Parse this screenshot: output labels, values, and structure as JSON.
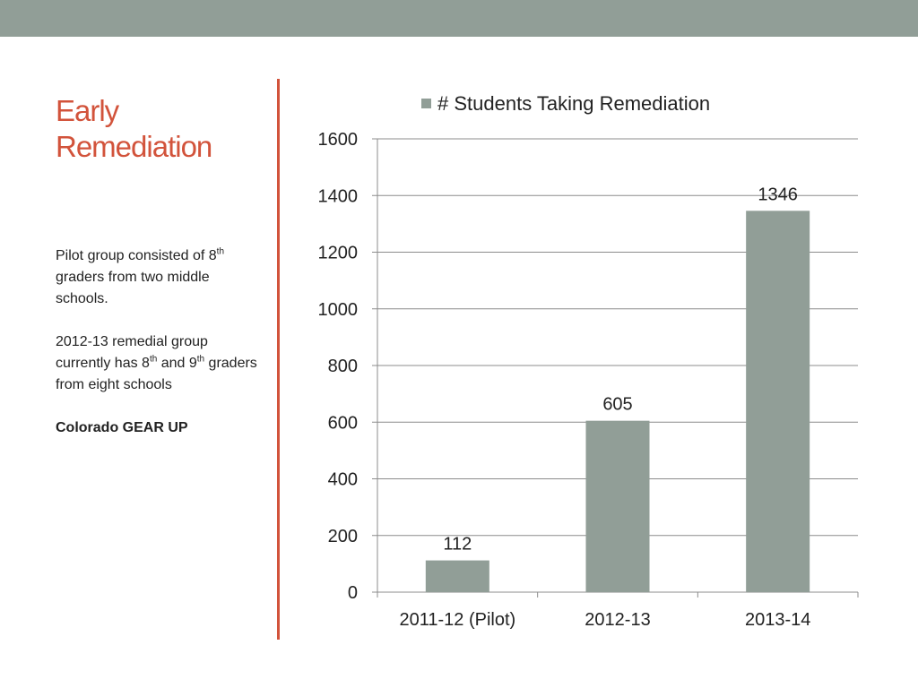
{
  "slide": {
    "title_line1": "Early",
    "title_line2": "Remediation",
    "note1": {
      "part1": "Pilot group consisted of 8",
      "sup1": "th",
      "part2": " graders from two middle schools."
    },
    "note2": {
      "part1": "2012-13 remedial group currently has 8",
      "sup1": "th",
      "part2": " and 9",
      "sup2": "th",
      "part3": " graders from eight schools"
    },
    "source": "Colorado GEAR UP"
  },
  "colors": {
    "band": "#919e97",
    "title": "#d2533b",
    "divider": "#d2533b",
    "bar": "#919e97",
    "grid": "#8c8c8c"
  },
  "chart_data": {
    "type": "bar",
    "categories": [
      "2011-12 (Pilot)",
      "2012-13",
      "2013-14"
    ],
    "series": [
      {
        "name": "# Students Taking Remediation",
        "values": [
          112,
          605,
          1346
        ]
      }
    ],
    "data_labels": [
      "112",
      "605",
      "1346"
    ],
    "ylim": [
      0,
      1600
    ],
    "yticks": [
      0,
      200,
      400,
      600,
      800,
      1000,
      1200,
      1400,
      1600
    ],
    "grid": true,
    "legend_position": "top"
  }
}
